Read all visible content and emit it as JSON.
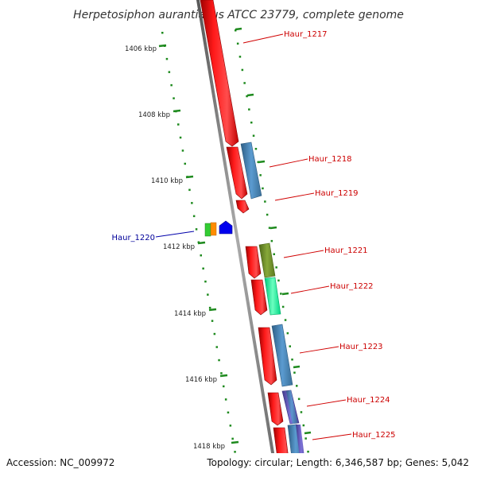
{
  "title": "Herpetosiphon aurantiacus ATCC 23779, complete genome",
  "footer": {
    "accession": "Accession: NC_009972",
    "info": "Topology: circular; Length: 6,346,587 bp; Genes: 5,042"
  },
  "scale_labels": [
    "1406 kbp",
    "1408 kbp",
    "1410 kbp",
    "1412 kbp",
    "1414 kbp",
    "1416 kbp",
    "1418 kbp"
  ],
  "genes": [
    {
      "name": "Haur_1217",
      "strand": "+",
      "color": "#cc0000"
    },
    {
      "name": "Haur_1218",
      "strand": "+",
      "color": "#cc0000"
    },
    {
      "name": "Haur_1219",
      "strand": "+",
      "color": "#cc0000"
    },
    {
      "name": "Haur_1220",
      "strand": "-",
      "color": "#000099"
    },
    {
      "name": "Haur_1221",
      "strand": "+",
      "color": "#cc0000"
    },
    {
      "name": "Haur_1222",
      "strand": "+",
      "color": "#cc0000"
    },
    {
      "name": "Haur_1223",
      "strand": "+",
      "color": "#cc0000"
    },
    {
      "name": "Haur_1224",
      "strand": "+",
      "color": "#cc0000"
    },
    {
      "name": "Haur_1225",
      "strand": "+",
      "color": "#cc0000"
    }
  ],
  "colors": {
    "backbone": "#7a7a7a",
    "forward_gene": "#ff0000",
    "reverse_gene": "#0000ff",
    "tick": "#1e8a1e",
    "cog_blue": "#4682b4",
    "cog_olive": "#6b8e23",
    "cog_mint": "#00fa9a",
    "cog_slate": "#6a5acd",
    "cog_green": "#32cd32",
    "cog_orange": "#ff8c00"
  }
}
